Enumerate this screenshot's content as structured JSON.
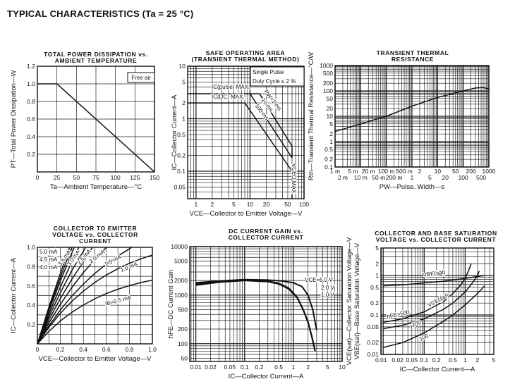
{
  "page_title": "TYPICAL CHARACTERISTICS (Ta = 25 °C)",
  "chart_data": [
    {
      "type": "line",
      "title": [
        "TOTAL POWER DISSIPATION vs.",
        "AMBIENT TEMPERATURE"
      ],
      "xlabel": "Ta—Ambient Temperature—°C",
      "ylabel": "PT—Total Power Dissipation—W",
      "xscale": "linear",
      "yscale": "linear",
      "xlim": [
        0,
        150
      ],
      "ylim": [
        0,
        1.2
      ],
      "grid": true,
      "xticks": [
        {
          "v": 0,
          "l": "0"
        },
        {
          "v": 25,
          "l": "25"
        },
        {
          "v": 50,
          "l": "50"
        },
        {
          "v": 75,
          "l": "75"
        },
        {
          "v": 100,
          "l": "100"
        },
        {
          "v": 125,
          "l": "125"
        },
        {
          "v": 150,
          "l": "150"
        }
      ],
      "yticks": [
        {
          "v": 0.2,
          "l": "0.2"
        },
        {
          "v": 0.4,
          "l": "0.4"
        },
        {
          "v": 0.6,
          "l": "0.6"
        },
        {
          "v": 0.8,
          "l": "0.8"
        },
        {
          "v": 1.0,
          "l": "1.0"
        },
        {
          "v": 1.2,
          "l": "1.2"
        }
      ],
      "series": [
        {
          "x": [
            0,
            25,
            150
          ],
          "y": [
            1.0,
            1.0,
            0
          ]
        }
      ],
      "annotations": [
        "Free air"
      ]
    },
    {
      "type": "line",
      "title": [
        "SAFE OPERATING AREA",
        "(TRANSIENT THERMAL METHOD)"
      ],
      "xlabel": "VCE—Collector to Emitter Voltage—V",
      "ylabel": "IC—Collector Current—A",
      "xscale": "log",
      "yscale": "log",
      "xlim": [
        0.7,
        100
      ],
      "ylim": [
        0.03,
        10
      ],
      "grid": true,
      "xticks": [
        {
          "v": 1,
          "l": "1"
        },
        {
          "v": 2,
          "l": "2"
        },
        {
          "v": 5,
          "l": "5"
        },
        {
          "v": 10,
          "l": "10"
        },
        {
          "v": 20,
          "l": "20"
        },
        {
          "v": 50,
          "l": "50"
        },
        {
          "v": 100,
          "l": "100"
        }
      ],
      "yticks": [
        {
          "v": 0.05,
          "l": "0.05"
        },
        {
          "v": 0.1,
          "l": "0.1"
        },
        {
          "v": 0.2,
          "l": "0.2"
        },
        {
          "v": 0.5,
          "l": "0.5"
        },
        {
          "v": 1,
          "l": "1"
        },
        {
          "v": 2,
          "l": "2"
        },
        {
          "v": 5,
          "l": "5"
        },
        {
          "v": 10,
          "l": "10"
        }
      ],
      "series": [
        {
          "name": "IC(pulse) MAX.",
          "x": [
            0.7,
            15
          ],
          "y": [
            3,
            3
          ]
        },
        {
          "name": "PW=1 ms",
          "x": [
            15,
            60,
            60
          ],
          "y": [
            3,
            0.3,
            0.18
          ]
        },
        {
          "name": "10 ms",
          "x": [
            10,
            60
          ],
          "y": [
            3,
            0.18
          ]
        },
        {
          "name": "IC(DC) MAX.",
          "x": [
            0.7,
            8
          ],
          "y": [
            2,
            2
          ]
        },
        {
          "name": "100 ms",
          "x": [
            8,
            60
          ],
          "y": [
            2,
            0.1
          ]
        },
        {
          "name": "VCEO MAX",
          "x": [
            60,
            60
          ],
          "y": [
            0.1,
            0.03
          ]
        }
      ],
      "annotations": [
        "Single Pulse",
        "Duty Cycle ≤ 2 %",
        "IC(pulse) MAX.",
        "IC(DC) MAX.",
        "PW=1 ms",
        "10 ms",
        "100 ms",
        "VCEO MAX"
      ]
    },
    {
      "type": "line",
      "title": [
        "TRANSIENT THERMAL",
        "RESISTANCE"
      ],
      "xlabel": "PW—Pulse. Width—s",
      "ylabel": "Rth—Transient Thermal Resistance—°C/W",
      "xscale": "log",
      "yscale": "log",
      "xlim": [
        0.001,
        1000
      ],
      "ylim": [
        0.1,
        1000
      ],
      "grid": true,
      "xticks": [
        {
          "v": 0.001,
          "l": "1 m"
        },
        {
          "v": 0.002,
          "l": "2 m"
        },
        {
          "v": 0.005,
          "l": "5 m"
        },
        {
          "v": 0.01,
          "l": "10 m"
        },
        {
          "v": 0.02,
          "l": "20 m"
        },
        {
          "v": 0.05,
          "l": "50 m"
        },
        {
          "v": 0.1,
          "l": "100 m"
        },
        {
          "v": 0.2,
          "l": "200 m"
        },
        {
          "v": 0.5,
          "l": "500 m"
        },
        {
          "v": 1,
          "l": "1"
        },
        {
          "v": 2,
          "l": "2"
        },
        {
          "v": 5,
          "l": "5"
        },
        {
          "v": 10,
          "l": "10"
        },
        {
          "v": 20,
          "l": "20"
        },
        {
          "v": 50,
          "l": "50"
        },
        {
          "v": 100,
          "l": "100"
        },
        {
          "v": 200,
          "l": "200"
        },
        {
          "v": 500,
          "l": "500"
        },
        {
          "v": 1000,
          "l": "1000"
        }
      ],
      "yticks": [
        {
          "v": 0.1,
          "l": "0.1"
        },
        {
          "v": 0.2,
          "l": "0.2"
        },
        {
          "v": 0.5,
          "l": "0.5"
        },
        {
          "v": 1,
          "l": "1"
        },
        {
          "v": 2,
          "l": "2"
        },
        {
          "v": 5,
          "l": "5"
        },
        {
          "v": 10,
          "l": "10"
        },
        {
          "v": 20,
          "l": "20"
        },
        {
          "v": 50,
          "l": "50"
        },
        {
          "v": 100,
          "l": "100"
        },
        {
          "v": 200,
          "l": "200"
        },
        {
          "v": 500,
          "l": "500"
        },
        {
          "v": 1000,
          "l": "1000"
        }
      ],
      "series": [
        {
          "x": [
            0.001,
            0.01,
            0.1,
            1,
            10,
            100,
            300,
            600,
            1000
          ],
          "y": [
            2.5,
            5,
            10,
            25,
            55,
            100,
            130,
            135,
            120
          ]
        }
      ],
      "annotations": []
    },
    {
      "type": "line",
      "title": [
        "COLLECTOR TO EMITTER",
        "VOLTAGE vs. COLLECTOR",
        "CURRENT"
      ],
      "xlabel": "VCE—Collector to Emitter Voltage—V",
      "ylabel": "IC—Collector Current—A",
      "xscale": "linear",
      "yscale": "linear",
      "xlim": [
        0,
        1.0
      ],
      "ylim": [
        0,
        1.0
      ],
      "grid": true,
      "xticks": [
        {
          "v": 0,
          "l": "0"
        },
        {
          "v": 0.2,
          "l": "0.2"
        },
        {
          "v": 0.4,
          "l": "0.4"
        },
        {
          "v": 0.6,
          "l": "0.6"
        },
        {
          "v": 0.8,
          "l": "0.8"
        },
        {
          "v": 1.0,
          "l": "1.0"
        }
      ],
      "yticks": [
        {
          "v": 0.2,
          "l": "0.2"
        },
        {
          "v": 0.4,
          "l": "0.4"
        },
        {
          "v": 0.6,
          "l": "0.6"
        },
        {
          "v": 0.8,
          "l": "0.8"
        },
        {
          "v": 1.0,
          "l": "1.0"
        }
      ],
      "series": [
        {
          "name": "IB=0.5 mA",
          "x": [
            0,
            0.1,
            0.2,
            0.3,
            0.4,
            0.5,
            0.6,
            0.7,
            0.8,
            0.9,
            1.0
          ],
          "y": [
            0,
            0.129,
            0.237,
            0.327,
            0.402,
            0.467,
            0.521,
            0.566,
            0.603,
            0.635,
            0.66
          ]
        },
        {
          "name": "1.0 mA",
          "x": [
            0,
            0.1,
            0.2,
            0.3,
            0.4,
            0.5,
            0.6,
            0.7,
            0.8,
            0.9,
            1.0
          ],
          "y": [
            0,
            0.171,
            0.317,
            0.441,
            0.546,
            0.637,
            0.713,
            0.778,
            0.834,
            0.881,
            0.92
          ]
        },
        {
          "name": "1.5 mA",
          "x": [
            0,
            0.1,
            0.2,
            0.3,
            0.4,
            0.5,
            0.6,
            0.7,
            0.8,
            0.82
          ],
          "y": [
            0,
            0.187,
            0.351,
            0.495,
            0.62,
            0.73,
            0.826,
            0.91,
            0.984,
            1.0
          ]
        },
        {
          "name": "2.0 mA",
          "x": [
            0,
            0.1,
            0.2,
            0.3,
            0.4,
            0.5,
            0.6
          ],
          "y": [
            0,
            0.217,
            0.41,
            0.584,
            0.738,
            0.874,
            1.0
          ]
        },
        {
          "name": "2.5 mA",
          "x": [
            0,
            0.1,
            0.2,
            0.3,
            0.4,
            0.48
          ],
          "y": [
            0,
            0.25,
            0.47,
            0.67,
            0.85,
            1.0
          ]
        },
        {
          "name": "3.0 mA",
          "x": [
            0,
            0.1,
            0.2,
            0.3,
            0.42
          ],
          "y": [
            0,
            0.28,
            0.53,
            0.76,
            1.0
          ]
        },
        {
          "name": "3.5 mA",
          "x": [
            0,
            0.1,
            0.2,
            0.3,
            0.36
          ],
          "y": [
            0,
            0.31,
            0.59,
            0.85,
            1.0
          ]
        },
        {
          "name": "4.0 mA",
          "x": [
            0,
            0.1,
            0.2,
            0.32
          ],
          "y": [
            0,
            0.34,
            0.65,
            1.0
          ]
        },
        {
          "name": "4.5 mA",
          "x": [
            0,
            0.1,
            0.2,
            0.3
          ],
          "y": [
            0,
            0.36,
            0.69,
            1.0
          ]
        },
        {
          "name": "5.0 mA",
          "x": [
            0,
            0.1,
            0.2,
            0.28
          ],
          "y": [
            0,
            0.38,
            0.73,
            1.0
          ]
        }
      ],
      "annotations": [
        "5.0 mA",
        "4.5 mA",
        "4.0 mA",
        "3.5 mA",
        "3.0 mA",
        "2.5 mA",
        "2.0 mA",
        "1.5 mA",
        "1.0 mA",
        "IB=0.5 mA"
      ]
    },
    {
      "type": "line",
      "title": [
        "DC CURRENT GAIN vs.",
        "COLLECTOR CURRENT"
      ],
      "xlabel": "IC—Collector Current—A",
      "ylabel": "hFE—DC Current Gain",
      "xscale": "log",
      "yscale": "log",
      "xlim": [
        0.0075,
        10
      ],
      "ylim": [
        43,
        10000
      ],
      "grid": true,
      "xticks": [
        {
          "v": 0.01,
          "l": "0.01"
        },
        {
          "v": 0.02,
          "l": "0.02"
        },
        {
          "v": 0.05,
          "l": "0.05"
        },
        {
          "v": 0.1,
          "l": "0.1"
        },
        {
          "v": 0.2,
          "l": "0.2"
        },
        {
          "v": 0.5,
          "l": "0.5"
        },
        {
          "v": 1,
          "l": "1"
        },
        {
          "v": 2,
          "l": "2"
        },
        {
          "v": 5,
          "l": "5"
        },
        {
          "v": 10,
          "l": "10"
        }
      ],
      "yticks": [
        {
          "v": 50,
          "l": "50"
        },
        {
          "v": 100,
          "l": "100"
        },
        {
          "v": 200,
          "l": "200"
        },
        {
          "v": 500,
          "l": "500"
        },
        {
          "v": 1000,
          "l": "1000"
        },
        {
          "v": 2000,
          "l": "2000"
        },
        {
          "v": 5000,
          "l": "5000"
        },
        {
          "v": 10000,
          "l": "10000"
        }
      ],
      "series": [
        {
          "name": "VCE=5.0 V",
          "x": [
            0.01,
            0.03,
            0.1,
            0.3,
            0.6,
            1,
            1.5,
            2,
            2.5,
            3
          ],
          "y": [
            1800,
            1950,
            2100,
            2050,
            1950,
            1800,
            1500,
            1000,
            500,
            190
          ]
        },
        {
          "name": "2.0 V",
          "x": [
            0.01,
            0.03,
            0.1,
            0.3,
            0.5,
            0.8,
            1.2,
            1.6,
            2,
            2.4,
            2.8
          ],
          "y": [
            1700,
            1900,
            2050,
            1950,
            1750,
            1400,
            900,
            500,
            280,
            140,
            70
          ]
        },
        {
          "name": "1.0 V",
          "x": [
            0.01,
            0.03,
            0.1,
            0.3,
            0.5,
            0.8,
            1.2,
            1.6,
            2,
            2.4,
            2.8
          ],
          "y": [
            1600,
            1850,
            2000,
            1900,
            1700,
            1350,
            880,
            490,
            270,
            135,
            70
          ]
        }
      ],
      "annotations": [
        "VCE=5.0 V",
        "2.0 V",
        "1.0 V"
      ]
    },
    {
      "type": "line",
      "title": [
        "COLLECTOR AND BASE SATURATION",
        "VOLTAGE vs. COLLECTOR CURRENT"
      ],
      "xlabel": "IC—Collector Current—A",
      "ylabel": "VCE(sat)—Collector Saturation Voltage—V",
      "ylabel2": "VBE(sat)—Base Saturation Voltage—V",
      "xscale": "log",
      "yscale": "log",
      "xlim": [
        0.0088,
        5
      ],
      "ylim": [
        0.01,
        5
      ],
      "grid": true,
      "xticks": [
        {
          "v": 0.01,
          "l": "0.01"
        },
        {
          "v": 0.02,
          "l": "0.02"
        },
        {
          "v": 0.05,
          "l": "0.05"
        },
        {
          "v": 0.1,
          "l": "0.1"
        },
        {
          "v": 0.2,
          "l": "0.2"
        },
        {
          "v": 0.5,
          "l": "0.5"
        },
        {
          "v": 1,
          "l": "1"
        },
        {
          "v": 2,
          "l": "2"
        },
        {
          "v": 5,
          "l": "5"
        }
      ],
      "yticks": [
        {
          "v": 0.01,
          "l": "0.01"
        },
        {
          "v": 0.02,
          "l": "0.02"
        },
        {
          "v": 0.05,
          "l": "0.05"
        },
        {
          "v": 0.1,
          "l": "0.1"
        },
        {
          "v": 0.2,
          "l": "0.2"
        },
        {
          "v": 0.5,
          "l": "0.5"
        },
        {
          "v": 1,
          "l": "1"
        },
        {
          "v": 2,
          "l": "2"
        },
        {
          "v": 5,
          "l": "5"
        }
      ],
      "series": [
        {
          "name": "VBE(sat)",
          "x": [
            0.01,
            0.03,
            0.1,
            0.3,
            1,
            2,
            3
          ],
          "y": [
            0.55,
            0.58,
            0.65,
            0.72,
            0.85,
            0.95,
            1.0
          ]
        },
        {
          "name": "hFE=500",
          "x": [
            0.01,
            0.03,
            0.1,
            0.3,
            0.5,
            0.8,
            1,
            1.2,
            1.4
          ],
          "y": [
            0.065,
            0.08,
            0.12,
            0.22,
            0.35,
            0.6,
            0.85,
            1.3,
            2.0
          ]
        },
        {
          "name": "200",
          "x": [
            0.01,
            0.03,
            0.1,
            0.3,
            0.5,
            1,
            1.5,
            2,
            2.2
          ],
          "y": [
            0.045,
            0.055,
            0.08,
            0.14,
            0.2,
            0.38,
            0.65,
            1.0,
            1.3
          ]
        },
        {
          "name": "100",
          "x": [
            0.01,
            0.03,
            0.1,
            0.3,
            0.5,
            1,
            2,
            3
          ],
          "y": [
            0.015,
            0.02,
            0.035,
            0.07,
            0.1,
            0.18,
            0.35,
            0.55
          ]
        }
      ],
      "annotations": [
        "VBE(sat)",
        "VCE(sat)",
        "hFE=500",
        "200",
        "100"
      ]
    }
  ]
}
